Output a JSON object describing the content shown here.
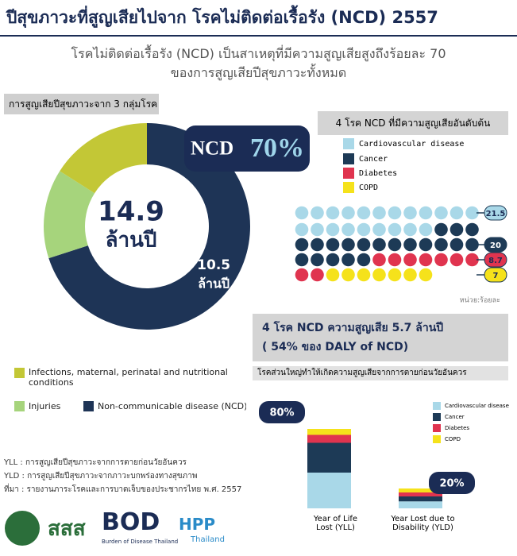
{
  "title": "ปีสุขภาวะที่สูญเสียไปจาก โรคไม่ติดต่อเรื้อรัง (NCD) 2557",
  "subtitle": [
    "โรคไม่ติดต่อเรื้อรัง (NCD) เป็นสาเหตุที่มีความสูญเสียสูงถึงร้อยละ 70",
    "ของการสูญเสียปีสุขภาวะทั้งหมด"
  ],
  "chart_data": [
    {
      "type": "pie",
      "title": "การสูญเสียปีสุขภาวะจาก 3 กลุ่มโรค",
      "categories": [
        "Infections, maternal, perinatal and nutritional conditions",
        "Injuries",
        "Non-communicable disease (NCD)"
      ],
      "values": [
        16,
        14,
        70
      ],
      "value_labels": [
        null,
        null,
        "70%"
      ],
      "colors": [
        "#c3c736",
        "#a6d47c",
        "#1e3456"
      ],
      "highlight_name": "NCD",
      "amounts": [
        null,
        null,
        10.5
      ],
      "total": 14.9,
      "unit": "ล้านปี"
    },
    {
      "type": "dots",
      "title": "4 โรค NCD ที่มีความสูญเสียอันดับต้น",
      "categories": [
        "Cardiovascular disease",
        "Cancer",
        "Diabetes",
        "COPD"
      ],
      "values": [
        21.5,
        20,
        8.7,
        7
      ],
      "colors": [
        "#a9d8e8",
        "#1d3a56",
        "#e0344f",
        "#f5e21b"
      ],
      "unit_label": "หน่วย:ร้อยละ"
    },
    {
      "type": "stacked_bar",
      "title": "4 โรค NCD ความสูญเสีย 5.7 ล้านปี",
      "subtitle": "( 54% ของ DALY of NCD)",
      "note": "โรคส่วนใหญ่ทำให้เกิดความสูญเสียจากการตายก่อนวัยอันควร",
      "categories": [
        "Year of Life Lost (YLL)",
        "Year Lost due to Disability (YLD)"
      ],
      "total_labels": [
        "80%",
        "20%"
      ],
      "series": [
        {
          "name": "Cardiovascular disease",
          "color": "#a9d8e8",
          "values": [
            36,
            7
          ]
        },
        {
          "name": "Cancer",
          "color": "#1d3a56",
          "values": [
            30,
            5
          ]
        },
        {
          "name": "Diabetes",
          "color": "#e0344f",
          "values": [
            8,
            4
          ]
        },
        {
          "name": "COPD",
          "color": "#f5e21b",
          "values": [
            6,
            4
          ]
        }
      ]
    }
  ],
  "footer": {
    "notes": [
      "YLL : การสูญเสียปีสุขภาวะจากการตายก่อนวัยอันควร",
      "YLD : การสูญเสียปีสุขภาวะจากภาวะบกพร่องทางสุขภาพ",
      "ที่มา : รายงานภาระโรคและการบาดเจ็บของประชากรไทย พ.ศ. 2557"
    ],
    "logos": [
      "สสส",
      "BOD",
      "Burden of Disease Thailand",
      "HPP",
      "Thailand"
    ]
  }
}
